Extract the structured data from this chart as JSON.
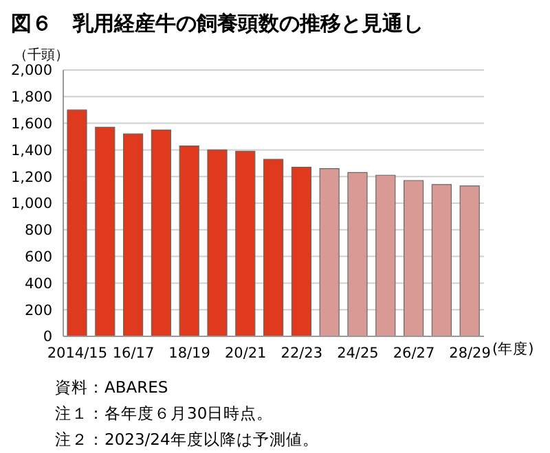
{
  "chart_data": {
    "type": "bar",
    "title": "図６　乳用経産牛の飼養頭数の推移と見通し",
    "ylabel": "（千頭）",
    "xlabel": "(年度)",
    "categories": [
      "2014/15",
      null,
      "16/17",
      null,
      "18/19",
      null,
      "20/21",
      null,
      "22/23",
      null,
      "24/25",
      null,
      "26/27",
      null,
      "28/29"
    ],
    "values": [
      1700,
      1570,
      1520,
      1550,
      1430,
      1400,
      1390,
      1330,
      1270,
      1260,
      1230,
      1210,
      1170,
      1140,
      1130
    ],
    "colors": [
      "#e03a1e",
      "#e03a1e",
      "#e03a1e",
      "#e03a1e",
      "#e03a1e",
      "#e03a1e",
      "#e03a1e",
      "#e03a1e",
      "#e03a1e",
      "#d99a95",
      "#d99a95",
      "#d99a95",
      "#d99a95",
      "#d99a95",
      "#d99a95"
    ],
    "ylim": [
      0,
      2000
    ],
    "yticks": [
      {
        "value": 0,
        "label": "0"
      },
      {
        "value": 200,
        "label": "200"
      },
      {
        "value": 400,
        "label": "400"
      },
      {
        "value": 600,
        "label": "600"
      },
      {
        "value": 800,
        "label": "800"
      },
      {
        "value": 1000,
        "label": "1,000"
      },
      {
        "value": 1200,
        "label": "1,200"
      },
      {
        "value": 1400,
        "label": "1,400"
      },
      {
        "value": 1600,
        "label": "1,600"
      },
      {
        "value": 1800,
        "label": "1,800"
      },
      {
        "value": 2000,
        "label": "2,000"
      }
    ],
    "grid": "y",
    "legend": false,
    "annotations": [
      "資料：ABARES",
      "注１：各年度６月30日時点。",
      "注２：2023/24年度以降は予測値。"
    ]
  }
}
